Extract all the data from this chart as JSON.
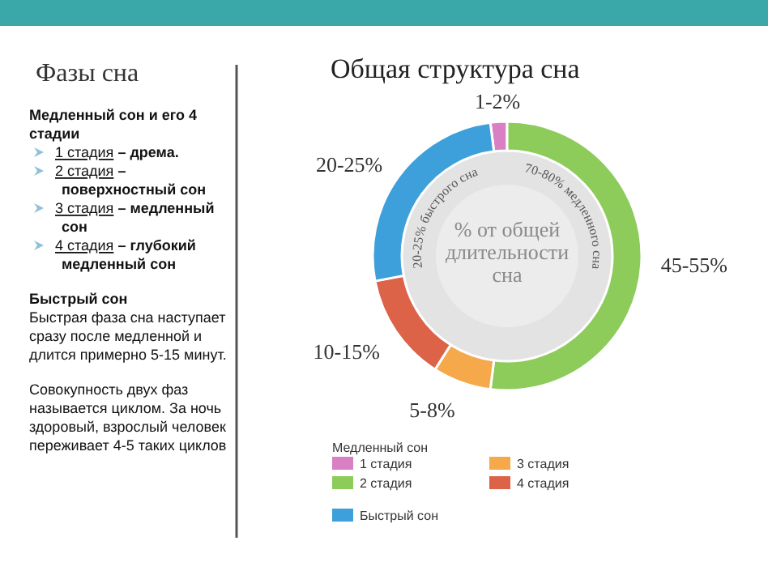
{
  "chart_data": [
    {
      "type": "other",
      "title": "Фазы сна",
      "annotations": [
        "Медленный сон и его 4 стадии",
        "1 стадия – дрема.",
        "2 стадия – поверхностный сон",
        "3 стадия – медленный сон",
        "4 стадия – глубокий медленный сон",
        "Быстрый сон",
        "Быстрая фаза сна наступает сразу после медленной и длится примерно 5-15 минут.",
        "Совокупность двух фаз называется циклом. За ночь здоровый, взрослый человек переживает 4-5 таких циклов"
      ]
    },
    {
      "type": "donut",
      "title": "Общая структура сна",
      "categories": [
        "1 стадия",
        "2 стадия",
        "3 стадия",
        "4 стадия",
        "Быстрый сон"
      ],
      "values": [
        2,
        52,
        7,
        13,
        26
      ],
      "colors": [
        "#d97fc4",
        "#8dcb5a",
        "#f5a94a",
        "#dc6248",
        "#3ea0da"
      ],
      "legend_title": "Медленный сон",
      "legend": "bottom",
      "annotations": [
        "% от общей длительности сна",
        "20-25% быстрого сна",
        "70-80% медленного сна",
        {
          "text": "1-2%",
          "x": "1 стадия"
        },
        {
          "text": "45-55%",
          "x": "2 стадия"
        },
        {
          "text": "5-8%",
          "x": "3 стадия"
        },
        {
          "text": "10-15%",
          "x": "4 стадия"
        },
        {
          "text": "20-25%",
          "x": "Быстрый сон"
        }
      ]
    }
  ]
}
